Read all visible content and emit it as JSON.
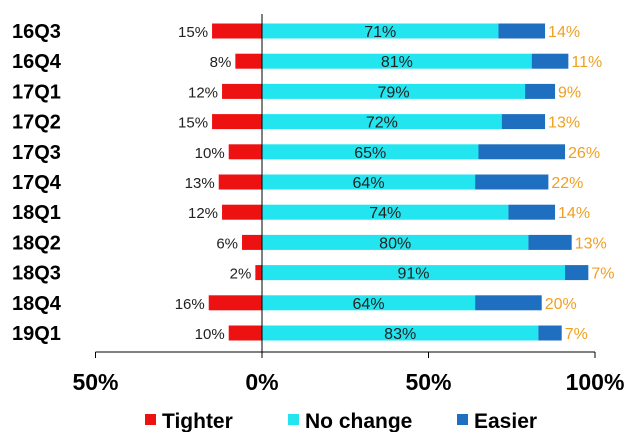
{
  "chart_data": {
    "type": "bar",
    "orientation": "horizontal",
    "stacked": true,
    "categories": [
      "16Q3",
      "16Q4",
      "17Q1",
      "17Q2",
      "17Q3",
      "17Q4",
      "18Q1",
      "18Q2",
      "18Q3",
      "18Q4",
      "19Q1"
    ],
    "series": [
      {
        "name": "Tighter",
        "color": "#ee1111",
        "direction": "negative",
        "values": [
          15,
          8,
          12,
          15,
          10,
          13,
          12,
          6,
          2,
          16,
          10
        ],
        "labels": [
          "15%",
          "8%",
          "12%",
          "15%",
          "10%",
          "13%",
          "12%",
          "6%",
          "2%",
          "16%",
          "10%"
        ]
      },
      {
        "name": "No change",
        "color": "#22e5f0",
        "direction": "positive",
        "values": [
          71,
          81,
          79,
          72,
          65,
          64,
          74,
          80,
          91,
          64,
          83
        ],
        "labels": [
          "71%",
          "81%",
          "79%",
          "72%",
          "65%",
          "64%",
          "74%",
          "80%",
          "91%",
          "64%",
          "83%"
        ]
      },
      {
        "name": "Easier",
        "color": "#1f6fc0",
        "direction": "positive",
        "values": [
          14,
          11,
          9,
          13,
          26,
          22,
          14,
          13,
          7,
          20,
          7
        ],
        "labels": [
          "14%",
          "11%",
          "9%",
          "13%",
          "26%",
          "22%",
          "14%",
          "13%",
          "7%",
          "20%",
          "7%"
        ]
      }
    ],
    "xlim": [
      -50,
      100
    ],
    "xticks": [
      -50,
      0,
      50,
      100
    ],
    "xtick_labels": [
      "50%",
      "0%",
      "50%",
      "100%"
    ],
    "legend_position": "bottom",
    "easier_label_color": "#f0a020",
    "grid": false
  }
}
